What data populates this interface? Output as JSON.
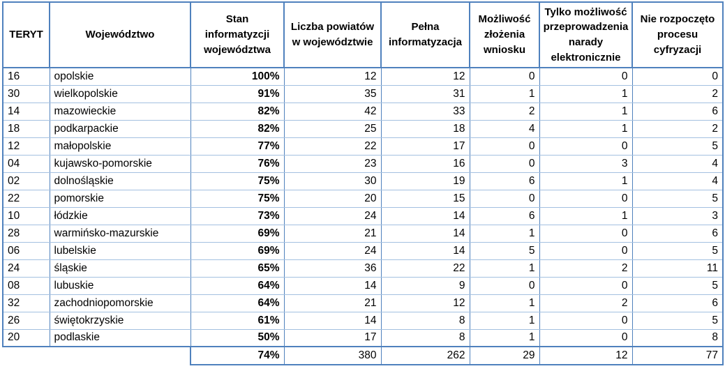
{
  "table": {
    "columns": [
      {
        "id": "teryt",
        "label": "TERYT",
        "align": "left",
        "bold": false
      },
      {
        "id": "wojewodztwo",
        "label": "Województwo",
        "align": "left",
        "bold": false
      },
      {
        "id": "stan-informatyzacji",
        "label": "Stan informatyzcji województwa",
        "align": "right",
        "bold": true
      },
      {
        "id": "liczba-powiatow",
        "label": "Liczba powiatów w województwie",
        "align": "right",
        "bold": false
      },
      {
        "id": "pelna-informatyzacja",
        "label": "Pełna informatyzacja",
        "align": "right",
        "bold": false
      },
      {
        "id": "mozliwosc-zlozenia-wniosku",
        "label": "Możliwość złożenia wniosku",
        "align": "right",
        "bold": false
      },
      {
        "id": "tylko-narada-elektroniczna",
        "label": "Tylko możliwość przeprowadzenia narady elektronicznie",
        "align": "right",
        "bold": false
      },
      {
        "id": "nie-rozpoczeto-cyfryzacji",
        "label": "Nie rozpoczęto procesu cyfryzacji",
        "align": "right",
        "bold": false
      }
    ],
    "rows": [
      [
        "16",
        "opolskie",
        "100%",
        "12",
        "12",
        "0",
        "0",
        "0"
      ],
      [
        "30",
        "wielkopolskie",
        "91%",
        "35",
        "31",
        "1",
        "1",
        "2"
      ],
      [
        "14",
        "mazowieckie",
        "82%",
        "42",
        "33",
        "2",
        "1",
        "6"
      ],
      [
        "18",
        "podkarpackie",
        "82%",
        "25",
        "18",
        "4",
        "1",
        "2"
      ],
      [
        "12",
        "małopolskie",
        "77%",
        "22",
        "17",
        "0",
        "0",
        "5"
      ],
      [
        "04",
        "kujawsko-pomorskie",
        "76%",
        "23",
        "16",
        "0",
        "3",
        "4"
      ],
      [
        "02",
        "dolnośląskie",
        "75%",
        "30",
        "19",
        "6",
        "1",
        "4"
      ],
      [
        "22",
        "pomorskie",
        "75%",
        "20",
        "15",
        "0",
        "0",
        "5"
      ],
      [
        "10",
        "łódzkie",
        "73%",
        "24",
        "14",
        "6",
        "1",
        "3"
      ],
      [
        "28",
        "warmińsko-mazurskie",
        "69%",
        "21",
        "14",
        "1",
        "0",
        "6"
      ],
      [
        "06",
        "lubelskie",
        "69%",
        "24",
        "14",
        "5",
        "0",
        "5"
      ],
      [
        "24",
        "śląskie",
        "65%",
        "36",
        "22",
        "1",
        "2",
        "11"
      ],
      [
        "08",
        "lubuskie",
        "64%",
        "14",
        "9",
        "0",
        "0",
        "5"
      ],
      [
        "32",
        "zachodniopomorskie",
        "64%",
        "21",
        "12",
        "1",
        "2",
        "6"
      ],
      [
        "26",
        "świętokrzyskie",
        "61%",
        "14",
        "8",
        "1",
        "0",
        "5"
      ],
      [
        "20",
        "podlaskie",
        "50%",
        "17",
        "8",
        "1",
        "0",
        "8"
      ]
    ],
    "total": [
      "",
      "",
      "74%",
      "380",
      "262",
      "29",
      "12",
      "77"
    ]
  },
  "colors": {
    "border_strong": "#4F81BD",
    "border_light": "#A3C0E0",
    "text": "#000000",
    "background": "#FFFFFF"
  }
}
